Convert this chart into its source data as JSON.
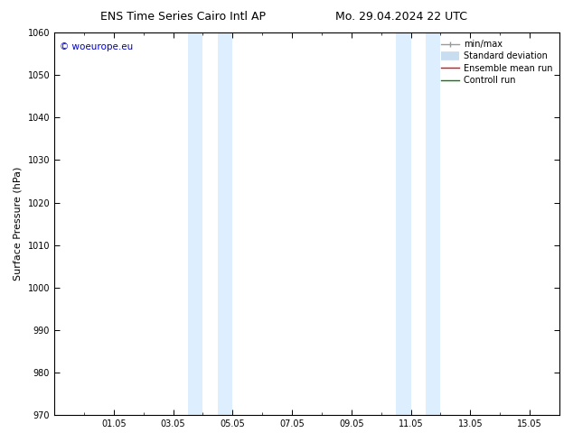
{
  "title_left": "ENS Time Series Cairo Intl AP",
  "title_right": "Mo. 29.04.2024 22 UTC",
  "ylabel": "Surface Pressure (hPa)",
  "ylim": [
    970,
    1060
  ],
  "yticks": [
    970,
    980,
    990,
    1000,
    1010,
    1020,
    1030,
    1040,
    1050,
    1060
  ],
  "xlim": [
    0,
    17
  ],
  "xtick_labels": [
    "01.05",
    "03.05",
    "05.05",
    "07.05",
    "09.05",
    "11.05",
    "13.05",
    "15.05"
  ],
  "xtick_positions": [
    2,
    4,
    6,
    8,
    10,
    12,
    14,
    16
  ],
  "shaded_bands": [
    {
      "x_start": 4.5,
      "x_end": 5.0,
      "color": "#ddeeff"
    },
    {
      "x_start": 5.5,
      "x_end": 6.0,
      "color": "#ddeeff"
    },
    {
      "x_start": 11.5,
      "x_end": 12.0,
      "color": "#ddeeff"
    },
    {
      "x_start": 12.5,
      "x_end": 13.0,
      "color": "#ddeeff"
    }
  ],
  "watermark_text": "© woeurope.eu",
  "watermark_color": "#0000cc",
  "legend_labels": [
    "min/max",
    "Standard deviation",
    "Ensemble mean run",
    "Controll run"
  ],
  "legend_colors": [
    "#999999",
    "#c8ddf0",
    "red",
    "green"
  ],
  "bg_color": "#ffffff",
  "plot_bg_color": "#ffffff",
  "title_fontsize": 9,
  "tick_fontsize": 7,
  "ylabel_fontsize": 8,
  "legend_fontsize": 7
}
